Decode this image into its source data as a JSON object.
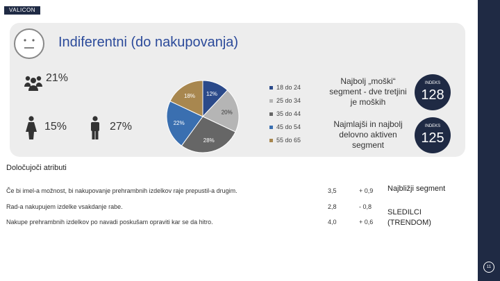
{
  "logo": {
    "text": "VALICON"
  },
  "header": {
    "title": "Indiferentni (do nakupovanja)"
  },
  "stats": {
    "group": "21%",
    "female": "15%",
    "male": "27%"
  },
  "chart_data": {
    "type": "pie",
    "categories": [
      "18 do 24",
      "25 do 34",
      "35 do 44",
      "45 do 54",
      "55 do 65"
    ],
    "values": [
      12,
      20,
      28,
      22,
      18
    ],
    "data_labels": [
      "12%",
      "20%",
      "28%",
      "22%",
      "18%"
    ],
    "colors": [
      "#2b4a8a",
      "#b5b5b5",
      "#666666",
      "#3a6fb0",
      "#a8874f"
    ],
    "legend_position": "right"
  },
  "notes": {
    "male_note": "Najbolj „moški“ segment - dve tretjini je moških",
    "young_note": "Najmlajši in najbolj delovno aktiven segment"
  },
  "indexes": [
    {
      "label": "INDEKS",
      "value": "128"
    },
    {
      "label": "INDEKS",
      "value": "125"
    }
  ],
  "attributes": {
    "title": "Določujoči atributi",
    "rows": [
      {
        "text": "Če bi imel-a možnost, bi nakupovanje prehrambnih izdelkov raje prepustil-a drugim.",
        "score": "3,5",
        "diff": "+ 0,9"
      },
      {
        "text": "Rad-a nakupujem izdelke vsakdanje rabe.",
        "score": "2,8",
        "diff": "- 0,8"
      },
      {
        "text": "Nakupe prehrambnih izdelkov po navadi poskušam opraviti kar se da hitro.",
        "score": "4,0",
        "diff": "+ 0,6"
      }
    ]
  },
  "side": {
    "closest_title": "Najbližji segment",
    "closest_line1": "SLEDILCI",
    "closest_line2": "(TRENDOM)"
  },
  "footer": {
    "page": "11"
  }
}
